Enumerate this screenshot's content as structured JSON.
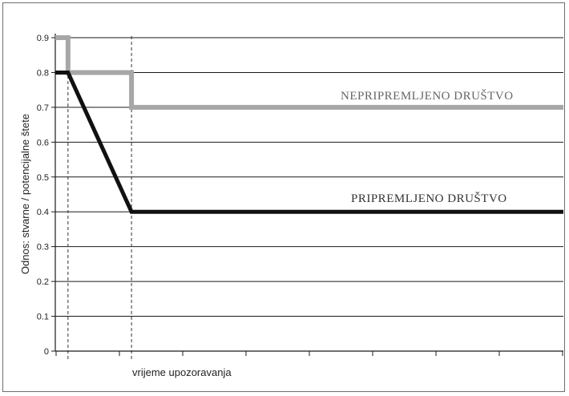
{
  "chart_data": {
    "type": "line",
    "ylabel": "Odnos: stvarne / potencijalne štete",
    "xlabel": "vrijeme upozoravanja",
    "ylim": [
      0,
      0.9
    ],
    "y_ticks": [
      "0",
      "0.1",
      "0.2",
      "0.3",
      "0.4",
      "0.5",
      "0.6",
      "0.7",
      "0.8",
      "0.9"
    ],
    "grid": true,
    "x_ticks_labeled": false,
    "series": [
      {
        "name": "NEPRIPREMLJENO DRUŠTVO",
        "color": "#a7a7a7",
        "points": [
          [
            0,
            0.9
          ],
          [
            0.025,
            0.9
          ],
          [
            0.025,
            0.8
          ],
          [
            0.15,
            0.8
          ],
          [
            0.15,
            0.7
          ],
          [
            1.0,
            0.7
          ]
        ]
      },
      {
        "name": "PRIPREMLJENO DRUŠTVO",
        "color": "#111111",
        "points": [
          [
            0,
            0.8
          ],
          [
            0.025,
            0.8
          ],
          [
            0.15,
            0.4
          ],
          [
            1.0,
            0.4
          ]
        ]
      }
    ],
    "markers_x": [
      0.025,
      0.15
    ]
  }
}
